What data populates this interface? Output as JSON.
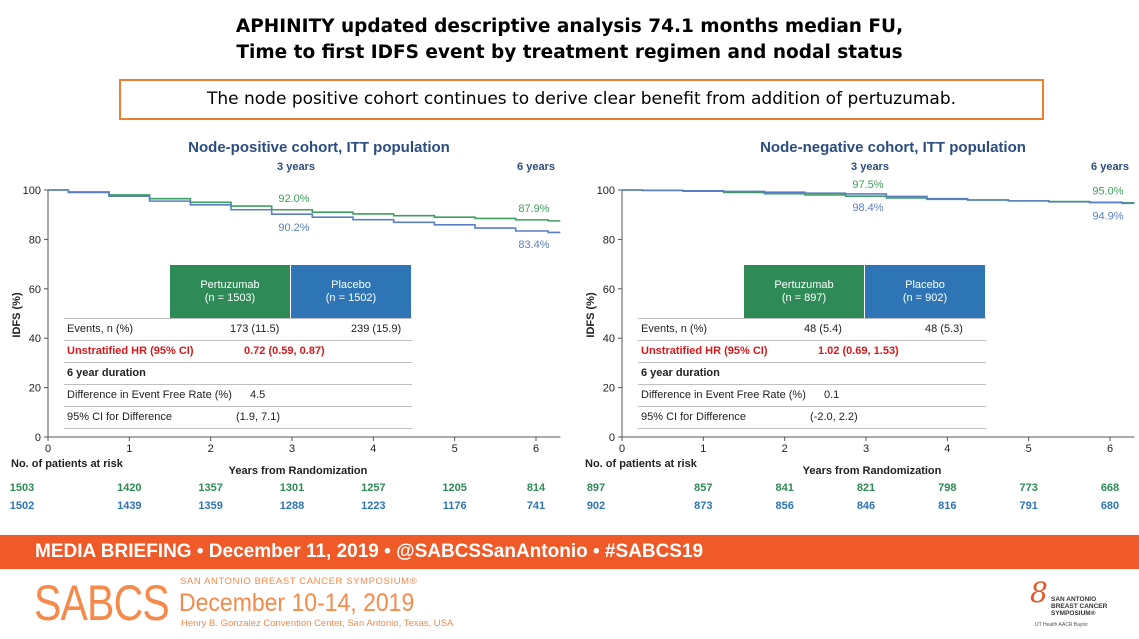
{
  "title": {
    "line1": "APHINITY updated descriptive analysis 74.1 months median FU,",
    "line2": "Time to first IDFS event by treatment regimen and nodal status"
  },
  "callout": "The node positive cohort continues to derive clear benefit from addition of pertuzumab.",
  "colors": {
    "pertuzumab": "#2e8b57",
    "placebo": "#2e75b6",
    "pertuzumab_curve": "#3f9f5f",
    "placebo_curve": "#5b7fc4",
    "chart_title": "#2b4c7e",
    "hr_red": "#d7191c",
    "footer_orange": "#f05a28",
    "logo_orange": "#f58a4b"
  },
  "chart_data": [
    {
      "type": "line",
      "title": "Node-positive cohort, ITT population",
      "xlabel": "Years from Randomization",
      "ylabel": "IDFS (%)",
      "xlim": [
        0,
        6.3
      ],
      "ylim": [
        0,
        100
      ],
      "xticks": [
        "0",
        "1",
        "2",
        "3",
        "4",
        "5",
        "6"
      ],
      "yticks": [
        "0",
        "20",
        "40",
        "60",
        "80",
        "100"
      ],
      "period_labels": [
        {
          "x": 3,
          "text": "3 years"
        },
        {
          "x": 6,
          "text": "6 years"
        }
      ],
      "annotations": [
        {
          "x": 3,
          "y": 92.0,
          "text": "92.0%",
          "series": "Pertuzumab",
          "pos": "above"
        },
        {
          "x": 3,
          "y": 90.2,
          "text": "90.2%",
          "series": "Placebo",
          "pos": "below"
        },
        {
          "x": 6,
          "y": 87.9,
          "text": "87.9%",
          "series": "Pertuzumab",
          "pos": "above"
        },
        {
          "x": 6,
          "y": 83.4,
          "text": "83.4%",
          "series": "Placebo",
          "pos": "below"
        }
      ],
      "series": [
        {
          "name": "Pertuzumab",
          "x": [
            0,
            0.5,
            1,
            1.5,
            2,
            2.5,
            3,
            3.5,
            4,
            4.5,
            5,
            5.5,
            6,
            6.3
          ],
          "y": [
            100,
            99.2,
            98,
            96.5,
            95,
            93.5,
            92,
            91,
            90.3,
            89.6,
            89,
            88.5,
            87.9,
            87.5
          ]
        },
        {
          "name": "Placebo",
          "x": [
            0,
            0.5,
            1,
            1.5,
            2,
            2.5,
            3,
            3.5,
            4,
            4.5,
            5,
            5.5,
            6,
            6.3
          ],
          "y": [
            100,
            99,
            97.5,
            95.5,
            94,
            92,
            90.2,
            89,
            88,
            86.9,
            85.9,
            84.6,
            83.4,
            82.8
          ]
        }
      ],
      "at_risk": {
        "label": "No. of patients at risk",
        "rows": [
          {
            "series": "Pertuzumab",
            "values": [
              "1503",
              "1420",
              "1357",
              "1301",
              "1257",
              "1205",
              "814"
            ]
          },
          {
            "series": "Placebo",
            "values": [
              "1502",
              "1439",
              "1359",
              "1288",
              "1223",
              "1176",
              "741"
            ]
          }
        ]
      },
      "table": {
        "columns": [
          {
            "name": "Pertuzumab",
            "sub": "(n = 1503)"
          },
          {
            "name": "Placebo",
            "sub": "(n = 1502)"
          }
        ],
        "events_label": "Events, n (%)",
        "events": [
          "173 (11.5)",
          "239 (15.9)"
        ],
        "hr_label": "Unstratified HR (95% CI)",
        "hr_value": "0.72 (0.59, 0.87)",
        "duration_label": "6 year duration",
        "diff_label": "Difference in Event Free Rate (%)",
        "diff_value": "4.5",
        "ci_label": "95% CI for Difference",
        "ci_value": "(1.9, 7.1)"
      }
    },
    {
      "type": "line",
      "title": "Node-negative cohort, ITT population",
      "xlabel": "Years from Randomization",
      "ylabel": "IDFS (%)",
      "xlim": [
        0,
        6.3
      ],
      "ylim": [
        0,
        100
      ],
      "xticks": [
        "0",
        "1",
        "2",
        "3",
        "4",
        "5",
        "6"
      ],
      "yticks": [
        "0",
        "20",
        "40",
        "60",
        "80",
        "100"
      ],
      "period_labels": [
        {
          "x": 3,
          "text": "3 years"
        },
        {
          "x": 6,
          "text": "6 years"
        }
      ],
      "annotations": [
        {
          "x": 3,
          "y": 97.5,
          "text": "97.5%",
          "series": "Pertuzumab",
          "pos": "above"
        },
        {
          "x": 3,
          "y": 98.4,
          "text": "98.4%",
          "series": "Placebo",
          "pos": "below"
        },
        {
          "x": 6,
          "y": 95.0,
          "text": "95.0%",
          "series": "Pertuzumab",
          "pos": "above"
        },
        {
          "x": 6,
          "y": 94.9,
          "text": "94.9%",
          "series": "Placebo",
          "pos": "below"
        }
      ],
      "series": [
        {
          "name": "Pertuzumab",
          "x": [
            0,
            0.5,
            1,
            1.5,
            2,
            2.5,
            3,
            3.5,
            4,
            4.5,
            5,
            5.5,
            6,
            6.3
          ],
          "y": [
            100,
            99.8,
            99.5,
            99,
            98.5,
            98,
            97.5,
            96.8,
            96.2,
            95.9,
            95.6,
            95.3,
            95.0,
            94.8
          ]
        },
        {
          "name": "Placebo",
          "x": [
            0,
            0.5,
            1,
            1.5,
            2,
            2.5,
            3,
            3.5,
            4,
            4.5,
            5,
            5.5,
            6,
            6.3
          ],
          "y": [
            100,
            99.9,
            99.7,
            99.4,
            99.1,
            98.7,
            98.4,
            97.4,
            96.5,
            96,
            95.6,
            95.2,
            94.9,
            94.6
          ]
        }
      ],
      "at_risk": {
        "label": "No. of patients at risk",
        "rows": [
          {
            "series": "Pertuzumab",
            "values": [
              "897",
              "857",
              "841",
              "821",
              "798",
              "773",
              "668"
            ]
          },
          {
            "series": "Placebo",
            "values": [
              "902",
              "873",
              "856",
              "846",
              "816",
              "791",
              "680"
            ]
          }
        ]
      },
      "table": {
        "columns": [
          {
            "name": "Pertuzumab",
            "sub": "(n = 897)"
          },
          {
            "name": "Placebo",
            "sub": "(n = 902)"
          }
        ],
        "events_label": "Events, n (%)",
        "events": [
          "48 (5.4)",
          "48 (5.3)"
        ],
        "hr_label": "Unstratified HR (95% CI)",
        "hr_value": "1.02 (0.69, 1.53)",
        "duration_label": "6 year duration",
        "diff_label": "Difference in Event Free Rate (%)",
        "diff_value": "0.1",
        "ci_label": "95% CI for Difference",
        "ci_value": "(-2.0, 2.2)"
      }
    }
  ],
  "footer": {
    "bar_text": "MEDIA BRIEFING  •  December 11, 2019  •  @SABCSSanAntonio  •  #SABCS19",
    "logo": "SABCS",
    "conf_name": "SAN ANTONIO BREAST CANCER SYMPOSIUM®",
    "dates": "December 10-14, 2019",
    "venue": "Henry B. Gonzalez Convention Center, San Antonio, Texas, USA",
    "corner_logo_text": "SAN ANTONIO\nBREAST CANCER\nSYMPOSIUM®",
    "corner_logo_sub": "UT Health  AACR  Baylor"
  }
}
